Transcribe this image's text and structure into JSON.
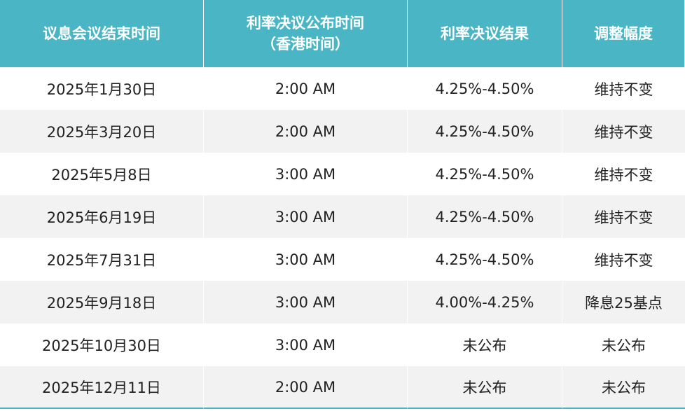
{
  "header": {
    "col1": "议息会议结束时间",
    "col2_line1": "利率决议公布时间",
    "col2_line2": "（香港时间）",
    "col3": "利率决议结果",
    "col4": "调整幅度"
  },
  "rows": [
    {
      "meeting_end": "2025年1月30日",
      "announce_time": "2:00 AM",
      "rate": "4.25%-4.50%",
      "change": "维持不变"
    },
    {
      "meeting_end": "2025年3月20日",
      "announce_time": "2:00 AM",
      "rate": "4.25%-4.50%",
      "change": "维持不变"
    },
    {
      "meeting_end": "2025年5月8日",
      "announce_time": "3:00 AM",
      "rate": "4.25%-4.50%",
      "change": "维持不变"
    },
    {
      "meeting_end": "2025年6月19日",
      "announce_time": "3:00 AM",
      "rate": "4.25%-4.50%",
      "change": "维持不变"
    },
    {
      "meeting_end": "2025年7月31日",
      "announce_time": "3:00 AM",
      "rate": "4.25%-4.50%",
      "change": "维持不变"
    },
    {
      "meeting_end": "2025年9月18日",
      "announce_time": "3:00 AM",
      "rate": "4.00%-4.25%",
      "change": "降息25基点"
    },
    {
      "meeting_end": "2025年10月30日",
      "announce_time": "3:00 AM",
      "rate": "未公布",
      "change": "未公布"
    },
    {
      "meeting_end": "2025年12月11日",
      "announce_time": "2:00 AM",
      "rate": "未公布",
      "change": "未公布"
    }
  ],
  "colors": {
    "header_bg": "#4ab5c4",
    "header_text": "#ffffff",
    "row_alt_bg": "#f2f2f2",
    "row_bg": "#ffffff",
    "text": "#222222"
  }
}
